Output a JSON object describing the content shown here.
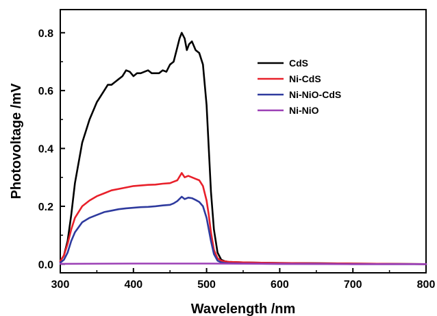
{
  "chart_data": {
    "type": "line",
    "xlabel": "Wavelength /nm",
    "ylabel": "Photovoltage /mV",
    "xlim": [
      300,
      800
    ],
    "ylim": [
      -0.03,
      0.88
    ],
    "xticks": [
      300,
      400,
      500,
      600,
      700,
      800
    ],
    "xtick_labels": [
      "300",
      "400",
      "500",
      "600",
      "700",
      "800"
    ],
    "yticks": [
      0.0,
      0.2,
      0.4,
      0.6,
      0.8
    ],
    "ytick_labels": [
      "0.0",
      "0.2",
      "0.4",
      "0.6",
      "0.8"
    ],
    "grid": false,
    "legend_position": "upper-right",
    "series": [
      {
        "name": "CdS",
        "color": "#000000",
        "x": [
          300,
          305,
          310,
          315,
          320,
          330,
          340,
          350,
          360,
          365,
          370,
          375,
          380,
          385,
          390,
          395,
          400,
          405,
          410,
          415,
          420,
          425,
          430,
          435,
          440,
          445,
          450,
          455,
          460,
          463,
          466,
          470,
          473,
          476,
          480,
          485,
          490,
          495,
          500,
          503,
          506,
          510,
          515,
          520,
          525,
          530,
          550,
          600,
          650,
          700,
          750,
          800
        ],
        "y": [
          0.01,
          0.03,
          0.08,
          0.17,
          0.28,
          0.42,
          0.5,
          0.56,
          0.6,
          0.62,
          0.62,
          0.63,
          0.64,
          0.65,
          0.67,
          0.665,
          0.65,
          0.66,
          0.66,
          0.665,
          0.67,
          0.66,
          0.66,
          0.66,
          0.67,
          0.665,
          0.69,
          0.7,
          0.75,
          0.78,
          0.8,
          0.78,
          0.74,
          0.76,
          0.77,
          0.74,
          0.73,
          0.69,
          0.55,
          0.4,
          0.25,
          0.12,
          0.04,
          0.015,
          0.01,
          0.008,
          0.006,
          0.004,
          0.003,
          0.002,
          0.001,
          0.0
        ]
      },
      {
        "name": "Ni-CdS",
        "color": "#e8202a",
        "x": [
          300,
          305,
          310,
          315,
          320,
          330,
          340,
          350,
          360,
          370,
          380,
          390,
          400,
          410,
          420,
          430,
          440,
          450,
          455,
          460,
          466,
          470,
          475,
          480,
          485,
          490,
          495,
          500,
          503,
          506,
          510,
          515,
          520,
          525,
          530,
          550,
          600,
          650,
          700,
          750,
          800
        ],
        "y": [
          0.01,
          0.03,
          0.07,
          0.12,
          0.16,
          0.2,
          0.22,
          0.235,
          0.245,
          0.255,
          0.26,
          0.265,
          0.27,
          0.272,
          0.274,
          0.275,
          0.278,
          0.28,
          0.285,
          0.29,
          0.315,
          0.3,
          0.305,
          0.3,
          0.295,
          0.29,
          0.27,
          0.22,
          0.17,
          0.11,
          0.05,
          0.02,
          0.012,
          0.01,
          0.008,
          0.006,
          0.004,
          0.003,
          0.002,
          0.001,
          0.0
        ]
      },
      {
        "name": "Ni-NiO-CdS",
        "color": "#2e3a9e",
        "x": [
          300,
          305,
          310,
          315,
          320,
          330,
          340,
          350,
          360,
          370,
          380,
          390,
          400,
          410,
          420,
          430,
          440,
          450,
          455,
          460,
          466,
          470,
          475,
          480,
          485,
          490,
          495,
          500,
          503,
          506,
          510,
          515,
          520,
          525,
          530,
          550,
          600,
          650,
          700,
          750,
          800
        ],
        "y": [
          0.005,
          0.015,
          0.04,
          0.08,
          0.11,
          0.145,
          0.16,
          0.17,
          0.18,
          0.185,
          0.19,
          0.193,
          0.195,
          0.197,
          0.198,
          0.2,
          0.203,
          0.205,
          0.21,
          0.218,
          0.233,
          0.225,
          0.23,
          0.228,
          0.222,
          0.215,
          0.2,
          0.16,
          0.12,
          0.08,
          0.035,
          0.012,
          0.006,
          0.004,
          0.003,
          0.002,
          0.001,
          0.001,
          0.0,
          0.0,
          0.0
        ]
      },
      {
        "name": "Ni-NiO",
        "color": "#9b3fb5",
        "x": [
          300,
          400,
          500,
          600,
          700,
          800
        ],
        "y": [
          0.001,
          0.002,
          0.002,
          0.001,
          0.0,
          0.0
        ]
      }
    ]
  }
}
